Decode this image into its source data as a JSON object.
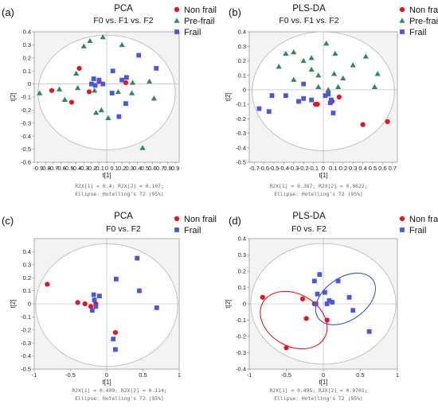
{
  "chart_data": [
    {
      "panel": "(a)",
      "type": "scatter",
      "title": "PCA",
      "subtitle": "F0 vs. F1 vs. F2",
      "xlabel": "t[1]",
      "ylabel": "t[2]",
      "xlim": [
        -0.95,
        0.95
      ],
      "ylim": [
        -0.6,
        0.4
      ],
      "xticks": [
        "-0.9",
        "-0.8",
        "-0.7",
        "-0.6",
        "-0.5",
        "-0.4",
        "-0.3",
        "-0.2",
        "-0.1",
        "0",
        "0.1",
        "0.2",
        "0.3",
        "0.4",
        "0.5",
        "0.6",
        "0.7",
        "0.8",
        "0.9"
      ],
      "yticks": [
        "0.4",
        "0.3",
        "0.2",
        "0.1",
        "0",
        "-0.1",
        "-0.2",
        "-0.3",
        "-0.4",
        "-0.5",
        "-0.6"
      ],
      "footer": [
        "R2X[1] = 0.4; R2X[2] = 0.107;",
        "Ellipse: Hotelling's T2 (95%)"
      ],
      "legend_position": "right",
      "ellipse": {
        "cx": 0,
        "cy": -0.065,
        "rx": 0.9,
        "ry": 0.44
      },
      "series": [
        {
          "name": "Non frail",
          "marker": "circle",
          "color": "#e8141b",
          "points": [
            [
              -0.72,
              -0.05
            ],
            [
              -0.36,
              0.12
            ],
            [
              -0.46,
              -0.14
            ],
            [
              -0.23,
              -0.06
            ],
            [
              0.25,
              0.01
            ],
            [
              -0.1,
              0.02
            ]
          ]
        },
        {
          "name": "Pre-frail",
          "marker": "triangle",
          "color": "#2f8a5a",
          "points": [
            [
              -0.88,
              -0.07
            ],
            [
              -0.62,
              -0.04
            ],
            [
              -0.55,
              -0.12
            ],
            [
              -0.3,
              0.29
            ],
            [
              -0.22,
              0.33
            ],
            [
              -0.05,
              0.36
            ],
            [
              0.2,
              0.3
            ],
            [
              -0.38,
              -0.03
            ],
            [
              -0.16,
              -0.05
            ],
            [
              0.15,
              -0.06
            ],
            [
              0.33,
              -0.07
            ],
            [
              -0.07,
              -0.2
            ],
            [
              -0.14,
              -0.22
            ],
            [
              0.02,
              -0.26
            ],
            [
              0.47,
              -0.49
            ],
            [
              -0.4,
              0.08
            ],
            [
              0.34,
              0.01
            ],
            [
              0.62,
              -0.11
            ],
            [
              0.56,
              0.02
            ]
          ]
        },
        {
          "name": "Frail",
          "marker": "square",
          "color": "#4a55e0",
          "points": [
            [
              -0.17,
              0.04
            ],
            [
              -0.1,
              0.03
            ],
            [
              -0.15,
              -0.01
            ],
            [
              -0.2,
              0.0
            ],
            [
              0.07,
              -0.07
            ],
            [
              0.2,
              0.03
            ],
            [
              0.26,
              0.05
            ],
            [
              0.25,
              -0.15
            ],
            [
              0.42,
              0.22
            ],
            [
              0.65,
              0.12
            ],
            [
              0.16,
              -0.25
            ],
            [
              0.08,
              0.1
            ],
            [
              -0.05,
              0.0
            ]
          ]
        }
      ]
    },
    {
      "panel": "(b)",
      "type": "scatter",
      "title": "PLS-DA",
      "subtitle": "F0 vs. F1 vs. F2",
      "xlabel": "t[1]",
      "ylabel": "t[2]",
      "xlim": [
        -0.75,
        0.75
      ],
      "ylim": [
        -0.5,
        0.4
      ],
      "xticks": [
        "-0.7",
        "-0.6",
        "-0.5",
        "-0.4",
        "-0.3",
        "-0.2",
        "-0.1",
        "0",
        "0.1",
        "0.2",
        "0.3",
        "0.4",
        "0.5",
        "0.6",
        "0.7"
      ],
      "yticks": [
        "0.4",
        "0.3",
        "0.2",
        "0.1",
        "0",
        "-0.1",
        "-0.2",
        "-0.3",
        "-0.4",
        "-0.5"
      ],
      "footer": [
        "R2X[1] = 0.387; R2X[2] = 0.0622;",
        "Ellipse: Hotelling's T2 (95%)"
      ],
      "legend_position": "right",
      "ellipse": {
        "cx": 0,
        "cy": -0.01,
        "rx": 0.72,
        "ry": 0.41
      },
      "series": [
        {
          "name": "Non frail",
          "marker": "circle",
          "color": "#e8141b",
          "points": [
            [
              -0.08,
              -0.1
            ],
            [
              0.09,
              -0.08
            ],
            [
              0.16,
              -0.05
            ],
            [
              0.4,
              -0.24
            ],
            [
              0.65,
              -0.22
            ],
            [
              -0.06,
              -0.1
            ]
          ]
        },
        {
          "name": "Pre-frail",
          "marker": "triangle",
          "color": "#2f8a5a",
          "points": [
            [
              -0.45,
              0.16
            ],
            [
              -0.38,
              0.25
            ],
            [
              -0.3,
              0.26
            ],
            [
              -0.2,
              0.2
            ],
            [
              -0.12,
              0.14
            ],
            [
              -0.05,
              0.1
            ],
            [
              0.03,
              0.32
            ],
            [
              0.11,
              0.11
            ],
            [
              0.2,
              0.08
            ],
            [
              0.3,
              0.17
            ],
            [
              0.43,
              0.23
            ],
            [
              0.55,
              0.11
            ],
            [
              0.52,
              0.02
            ],
            [
              -0.05,
              0.02
            ],
            [
              0.05,
              0.0
            ],
            [
              0.15,
              0.02
            ],
            [
              -0.3,
              0.07
            ],
            [
              -0.12,
              0.22
            ],
            [
              0.12,
              0.25
            ]
          ]
        },
        {
          "name": "Frail",
          "marker": "square",
          "color": "#4a55e0",
          "points": [
            [
              -0.65,
              -0.13
            ],
            [
              -0.55,
              -0.15
            ],
            [
              -0.52,
              -0.04
            ],
            [
              -0.38,
              -0.04
            ],
            [
              -0.2,
              -0.06
            ],
            [
              -0.12,
              -0.07
            ],
            [
              -0.25,
              -0.08
            ],
            [
              -0.2,
              0.04
            ],
            [
              0.05,
              -0.03
            ],
            [
              0.08,
              -0.07
            ],
            [
              0.1,
              -0.16
            ],
            [
              0.02,
              -0.04
            ],
            [
              0.07,
              -0.09
            ]
          ]
        }
      ]
    },
    {
      "panel": "(c)",
      "type": "scatter",
      "title": "PCA",
      "subtitle": "F0 vs. F2",
      "xlabel": "t[1]",
      "ylabel": "t[2]",
      "xlim": [
        -1.0,
        1.0
      ],
      "ylim": [
        -0.5,
        0.5
      ],
      "xticks": [
        "-1",
        "-0.5",
        "0",
        "0.5",
        "1"
      ],
      "yticks": [
        "0.4",
        "0.3",
        "0.2",
        "0.1",
        "0",
        "-0.1",
        "-0.2",
        "-0.3",
        "-0.4",
        "-0.5"
      ],
      "footer": [
        "R2X[1] = 0.499; R2X[2] = 0.114;",
        "Ellipse: Hotelling's T2 (95%)"
      ],
      "legend_position": "right",
      "ellipse": {
        "cx": 0,
        "cy": -0.01,
        "rx": 0.98,
        "ry": 0.47
      },
      "series": [
        {
          "name": "Non frail",
          "marker": "circle",
          "color": "#e8141b",
          "points": [
            [
              -0.82,
              0.15
            ],
            [
              -0.4,
              0.01
            ],
            [
              -0.3,
              0.0
            ],
            [
              -0.22,
              -0.02
            ],
            [
              0.12,
              -0.22
            ],
            [
              -0.15,
              0.0
            ]
          ]
        },
        {
          "name": "Frail",
          "marker": "square",
          "color": "#4a55e0",
          "points": [
            [
              -0.18,
              0.07
            ],
            [
              -0.17,
              0.03
            ],
            [
              -0.2,
              -0.05
            ],
            [
              -0.15,
              -0.02
            ],
            [
              0.13,
              0.19
            ],
            [
              0.42,
              0.35
            ],
            [
              0.45,
              0.1
            ],
            [
              0.69,
              -0.03
            ],
            [
              0.09,
              -0.27
            ],
            [
              0.12,
              -0.35
            ],
            [
              -0.1,
              0.06
            ]
          ]
        }
      ]
    },
    {
      "panel": "(d)",
      "type": "scatter",
      "title": "PLS-DA",
      "subtitle": "F0 vs. F2",
      "xlabel": "t[1]",
      "ylabel": "t[2]",
      "xlim": [
        -1.0,
        1.0
      ],
      "ylim": [
        -0.4,
        0.4
      ],
      "xticks": [
        "-1",
        "-0.5",
        "0",
        "0.5",
        "1"
      ],
      "yticks": [
        "0.4",
        "0.3",
        "0.2",
        "0.1",
        "0",
        "-0.1",
        "-0.2",
        "-0.3",
        "-0.4"
      ],
      "footer": [
        "R2X[1] = 0.495; R2X[2] = 0.0701;",
        "Ellipse: Hotelling's T2 (95%)"
      ],
      "legend_position": "right",
      "ellipse": {
        "cx": 0,
        "cy": 0.0,
        "rx": 0.98,
        "ry": 0.37
      },
      "group_ellipses": [
        {
          "group": "Non frail",
          "color": "#e8141b",
          "cx": -0.4,
          "cy": -0.1,
          "rx": 0.48,
          "ry": 0.16,
          "angle": 30
        },
        {
          "group": "Frail",
          "color": "#3b52b5",
          "cx": 0.3,
          "cy": 0.03,
          "rx": 0.45,
          "ry": 0.13,
          "angle": -35
        }
      ],
      "series": [
        {
          "name": "Non frail",
          "marker": "circle",
          "color": "#e8141b",
          "points": [
            [
              -0.82,
              0.04
            ],
            [
              -0.28,
              0.03
            ],
            [
              -0.23,
              -0.09
            ],
            [
              0.05,
              -0.1
            ],
            [
              -0.5,
              -0.27
            ],
            [
              -0.12,
              0.0
            ]
          ]
        },
        {
          "name": "Frail",
          "marker": "square",
          "color": "#4a55e0",
          "points": [
            [
              -0.12,
              0.14
            ],
            [
              -0.05,
              0.18
            ],
            [
              0.02,
              0.07
            ],
            [
              -0.08,
              0.06
            ],
            [
              0.05,
              0.0
            ],
            [
              0.08,
              0.02
            ],
            [
              0.2,
              0.14
            ],
            [
              0.35,
              0.04
            ],
            [
              0.4,
              -0.04
            ],
            [
              0.62,
              -0.17
            ],
            [
              -0.1,
              0.0
            ],
            [
              0.12,
              0.01
            ]
          ]
        }
      ]
    }
  ]
}
